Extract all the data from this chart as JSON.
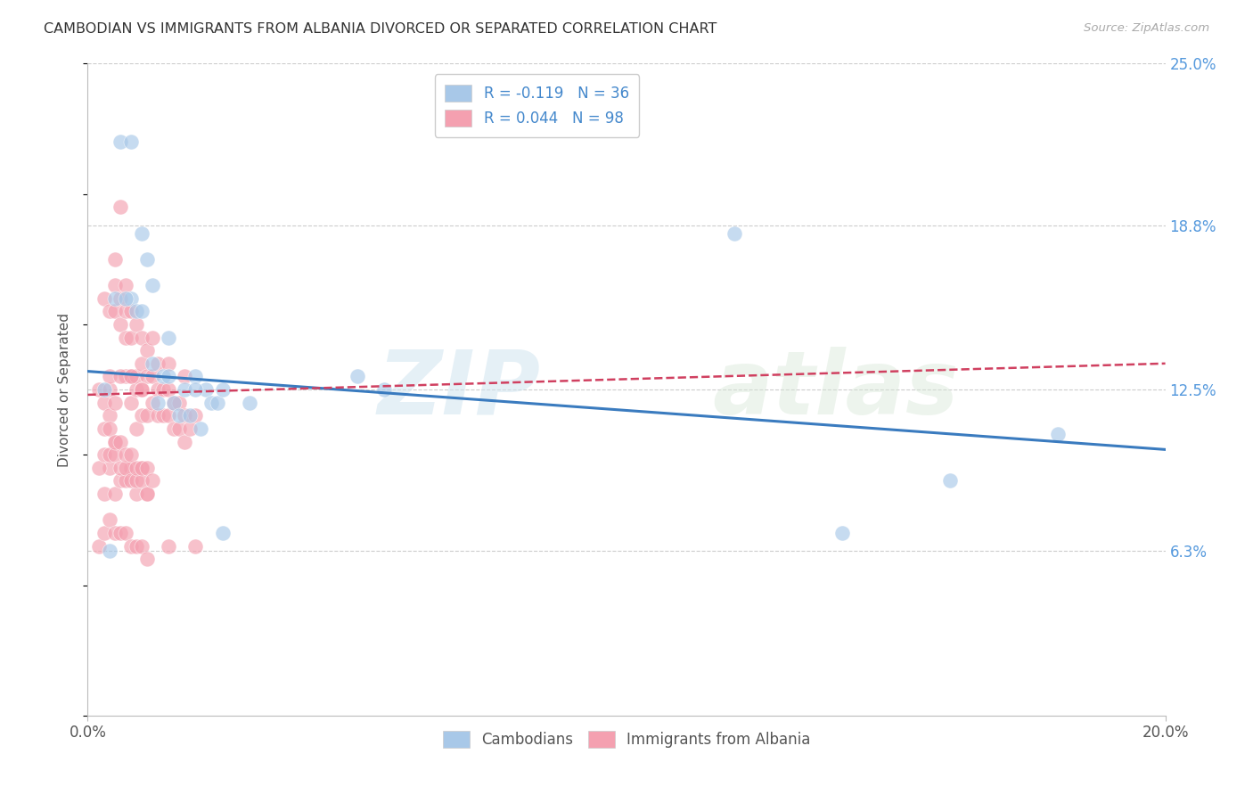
{
  "title": "CAMBODIAN VS IMMIGRANTS FROM ALBANIA DIVORCED OR SEPARATED CORRELATION CHART",
  "source": "Source: ZipAtlas.com",
  "ylabel": "Divorced or Separated",
  "xlim": [
    0.0,
    0.2
  ],
  "ylim": [
    0.0,
    0.25
  ],
  "yticks": [
    0.063,
    0.125,
    0.188,
    0.25
  ],
  "ytick_labels": [
    "6.3%",
    "12.5%",
    "18.8%",
    "25.0%"
  ],
  "cambodian_color": "#a8c8e8",
  "albania_color": "#f4a0b0",
  "trend_cambodian_color": "#3a7bbf",
  "trend_albania_color": "#d04060",
  "background_color": "#ffffff",
  "grid_color": "#cccccc",
  "watermark_zip": "ZIP",
  "watermark_atlas": "atlas",
  "cam_trend_start": 0.132,
  "cam_trend_end": 0.102,
  "alb_trend_start": 0.123,
  "alb_trend_end": 0.135,
  "cambodian_x": [
    0.004,
    0.006,
    0.008,
    0.009,
    0.01,
    0.011,
    0.012,
    0.013,
    0.014,
    0.015,
    0.016,
    0.017,
    0.018,
    0.019,
    0.02,
    0.021,
    0.022,
    0.023,
    0.024,
    0.025,
    0.003,
    0.005,
    0.007,
    0.01,
    0.015,
    0.02,
    0.025,
    0.03,
    0.05,
    0.055,
    0.12,
    0.14,
    0.16,
    0.18,
    0.008,
    0.012
  ],
  "cambodian_y": [
    0.063,
    0.22,
    0.16,
    0.155,
    0.155,
    0.175,
    0.135,
    0.12,
    0.13,
    0.13,
    0.12,
    0.115,
    0.125,
    0.115,
    0.13,
    0.11,
    0.125,
    0.12,
    0.12,
    0.07,
    0.125,
    0.16,
    0.16,
    0.185,
    0.145,
    0.125,
    0.125,
    0.12,
    0.13,
    0.125,
    0.185,
    0.07,
    0.09,
    0.108,
    0.22,
    0.165
  ],
  "albania_x": [
    0.002,
    0.003,
    0.003,
    0.004,
    0.004,
    0.004,
    0.005,
    0.005,
    0.005,
    0.006,
    0.006,
    0.006,
    0.007,
    0.007,
    0.007,
    0.007,
    0.008,
    0.008,
    0.008,
    0.008,
    0.009,
    0.009,
    0.009,
    0.009,
    0.01,
    0.01,
    0.01,
    0.01,
    0.011,
    0.011,
    0.011,
    0.012,
    0.012,
    0.012,
    0.013,
    0.013,
    0.013,
    0.014,
    0.014,
    0.015,
    0.015,
    0.015,
    0.016,
    0.016,
    0.017,
    0.017,
    0.018,
    0.018,
    0.019,
    0.02,
    0.003,
    0.004,
    0.005,
    0.005,
    0.006,
    0.007,
    0.008,
    0.009,
    0.01,
    0.011,
    0.002,
    0.003,
    0.004,
    0.005,
    0.006,
    0.007,
    0.008,
    0.009,
    0.01,
    0.011,
    0.003,
    0.004,
    0.005,
    0.006,
    0.007,
    0.008,
    0.009,
    0.01,
    0.011,
    0.012,
    0.002,
    0.003,
    0.004,
    0.005,
    0.006,
    0.007,
    0.008,
    0.009,
    0.01,
    0.011,
    0.004,
    0.005,
    0.006,
    0.008,
    0.01,
    0.015,
    0.018,
    0.02
  ],
  "albania_y": [
    0.125,
    0.12,
    0.16,
    0.115,
    0.125,
    0.155,
    0.165,
    0.155,
    0.175,
    0.195,
    0.15,
    0.16,
    0.13,
    0.145,
    0.155,
    0.165,
    0.12,
    0.13,
    0.145,
    0.155,
    0.11,
    0.125,
    0.13,
    0.15,
    0.115,
    0.125,
    0.135,
    0.145,
    0.115,
    0.13,
    0.14,
    0.12,
    0.13,
    0.145,
    0.115,
    0.125,
    0.135,
    0.115,
    0.125,
    0.115,
    0.125,
    0.135,
    0.11,
    0.12,
    0.11,
    0.12,
    0.105,
    0.115,
    0.11,
    0.115,
    0.085,
    0.095,
    0.085,
    0.105,
    0.09,
    0.09,
    0.095,
    0.085,
    0.095,
    0.085,
    0.095,
    0.1,
    0.1,
    0.1,
    0.095,
    0.095,
    0.09,
    0.09,
    0.09,
    0.085,
    0.11,
    0.11,
    0.105,
    0.105,
    0.1,
    0.1,
    0.095,
    0.095,
    0.095,
    0.09,
    0.065,
    0.07,
    0.075,
    0.07,
    0.07,
    0.07,
    0.065,
    0.065,
    0.065,
    0.06,
    0.13,
    0.12,
    0.13,
    0.13,
    0.125,
    0.065,
    0.13,
    0.065
  ]
}
